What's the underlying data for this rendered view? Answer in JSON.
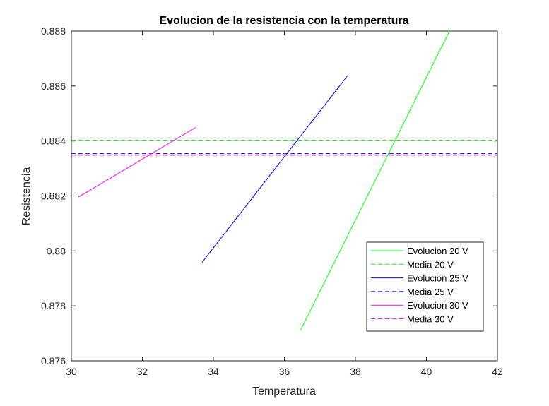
{
  "chart_data": {
    "type": "line",
    "title": "Evolucion de la resistencia con la temperatura",
    "xlabel": "Temperatura",
    "ylabel": "Resistencia",
    "xlim": [
      30,
      42
    ],
    "ylim": [
      0.876,
      0.888
    ],
    "xticks": [
      30,
      32,
      34,
      36,
      38,
      40,
      42
    ],
    "yticks": [
      0.876,
      0.878,
      0.88,
      0.882,
      0.884,
      0.886,
      0.888
    ],
    "xtick_labels": [
      "30",
      "32",
      "34",
      "36",
      "38",
      "40",
      "42"
    ],
    "ytick_labels": [
      "0.876",
      "0.878",
      "0.88",
      "0.882",
      "0.884",
      "0.886",
      "0.888"
    ],
    "grid": false,
    "legend_position": "bottom-right",
    "series": [
      {
        "name": "Evolucion 20 V",
        "style": "solid",
        "color": "#00ff00",
        "x": [
          36.45,
          40.65
        ],
        "y": [
          0.8771,
          0.888
        ]
      },
      {
        "name": "Media 20 V",
        "style": "dashed",
        "color": "#00ff00",
        "x": [
          30,
          42
        ],
        "y": [
          0.88403,
          0.88403
        ]
      },
      {
        "name": "Evolucion 25 V",
        "style": "solid",
        "color": "#0000ff",
        "x": [
          33.68,
          37.8
        ],
        "y": [
          0.87958,
          0.88641
        ]
      },
      {
        "name": "Media 25 V",
        "style": "dashed",
        "color": "#0000ff",
        "x": [
          30,
          42
        ],
        "y": [
          0.88354,
          0.88354
        ]
      },
      {
        "name": "Evolucion 30 V",
        "style": "solid",
        "color": "#ff00ff",
        "x": [
          30.2,
          33.5
        ],
        "y": [
          0.88196,
          0.88449
        ]
      },
      {
        "name": "Media 30 V",
        "style": "dashed",
        "color": "#ff00ff",
        "x": [
          30,
          42
        ],
        "y": [
          0.88348,
          0.88348
        ]
      }
    ]
  }
}
